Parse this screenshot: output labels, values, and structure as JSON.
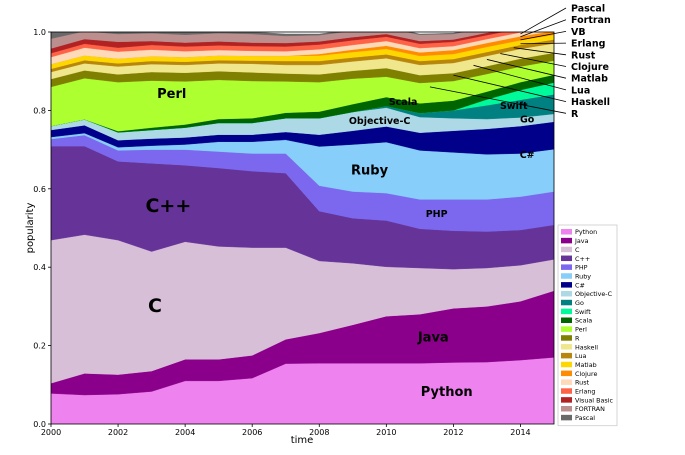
{
  "chart_data": {
    "type": "area",
    "stacked": true,
    "xlabel": "time",
    "ylabel": "popularity",
    "xlim": [
      2000,
      2015
    ],
    "ylim": [
      0,
      1.0
    ],
    "x": [
      2000,
      2001,
      2002,
      2003,
      2004,
      2005,
      2006,
      2007,
      2008,
      2009,
      2010,
      2011,
      2012,
      2013,
      2014,
      2015
    ],
    "x_ticks": [
      "2000",
      "2002",
      "2004",
      "2006",
      "2008",
      "2010",
      "2012",
      "2014"
    ],
    "y_ticks": [
      "0.0",
      "0.2",
      "0.4",
      "0.6",
      "0.8",
      "1.0"
    ],
    "series": [
      {
        "name": "Python",
        "color": "#ee82ee",
        "values": [
          0.078,
          0.074,
          0.076,
          0.083,
          0.11,
          0.11,
          0.117,
          0.154,
          0.155,
          0.155,
          0.155,
          0.155,
          0.157,
          0.158,
          0.163,
          0.17
        ]
      },
      {
        "name": "Java",
        "color": "#8b008b",
        "values": [
          0.026,
          0.055,
          0.05,
          0.052,
          0.055,
          0.055,
          0.058,
          0.062,
          0.077,
          0.098,
          0.12,
          0.125,
          0.138,
          0.142,
          0.15,
          0.17
        ]
      },
      {
        "name": "C",
        "color": "#d8bfd8",
        "values": [
          0.365,
          0.354,
          0.343,
          0.305,
          0.3,
          0.288,
          0.275,
          0.234,
          0.184,
          0.157,
          0.126,
          0.118,
          0.1,
          0.098,
          0.092,
          0.08
        ]
      },
      {
        "name": "C++",
        "color": "#663399",
        "values": [
          0.24,
          0.226,
          0.201,
          0.225,
          0.195,
          0.2,
          0.195,
          0.19,
          0.127,
          0.115,
          0.118,
          0.1,
          0.098,
          0.093,
          0.09,
          0.088
        ]
      },
      {
        "name": "PHP",
        "color": "#7b68ee",
        "values": [
          0.018,
          0.028,
          0.028,
          0.035,
          0.04,
          0.042,
          0.045,
          0.05,
          0.065,
          0.068,
          0.07,
          0.075,
          0.08,
          0.082,
          0.085,
          0.085
        ]
      },
      {
        "name": "Ruby",
        "color": "#87cefa",
        "values": [
          0.005,
          0.005,
          0.008,
          0.01,
          0.013,
          0.025,
          0.03,
          0.035,
          0.1,
          0.12,
          0.13,
          0.125,
          0.12,
          0.115,
          0.11,
          0.108
        ]
      },
      {
        "name": "C#",
        "color": "#00008b",
        "values": [
          0.018,
          0.02,
          0.018,
          0.018,
          0.018,
          0.018,
          0.018,
          0.02,
          0.03,
          0.035,
          0.04,
          0.045,
          0.055,
          0.065,
          0.07,
          0.07
        ]
      },
      {
        "name": "Objective-C",
        "color": "#add8e6",
        "values": [
          0.01,
          0.015,
          0.02,
          0.022,
          0.025,
          0.03,
          0.03,
          0.035,
          0.042,
          0.048,
          0.048,
          0.04,
          0.032,
          0.025,
          0.022,
          0.02
        ]
      },
      {
        "name": "Go",
        "color": "#008080",
        "values": [
          0.0,
          0.0,
          0.0,
          0.0,
          0.0,
          0.0,
          0.0,
          0.0,
          0.0,
          0.0,
          0.004,
          0.01,
          0.02,
          0.035,
          0.045,
          0.05
        ]
      },
      {
        "name": "Swift",
        "color": "#00fa9a",
        "values": [
          0.0,
          0.0,
          0.0,
          0.0,
          0.0,
          0.0,
          0.0,
          0.0,
          0.0,
          0.0,
          0.0,
          0.0,
          0.0,
          0.015,
          0.025,
          0.03
        ]
      },
      {
        "name": "Scala",
        "color": "#006400",
        "values": [
          0.0,
          0.0,
          0.003,
          0.006,
          0.008,
          0.01,
          0.012,
          0.014,
          0.017,
          0.02,
          0.023,
          0.025,
          0.025,
          0.02,
          0.02,
          0.02
        ]
      },
      {
        "name": "Perl",
        "color": "#adff2f",
        "values": [
          0.1,
          0.105,
          0.125,
          0.12,
          0.11,
          0.1,
          0.095,
          0.08,
          0.075,
          0.065,
          0.052,
          0.052,
          0.05,
          0.045,
          0.04,
          0.036
        ]
      },
      {
        "name": "R",
        "color": "#808000",
        "values": [
          0.02,
          0.02,
          0.02,
          0.022,
          0.022,
          0.022,
          0.022,
          0.02,
          0.02,
          0.02,
          0.022,
          0.02,
          0.02,
          0.02,
          0.02,
          0.02
        ]
      },
      {
        "name": "Haskell",
        "color": "#f0e68c",
        "values": [
          0.018,
          0.018,
          0.02,
          0.02,
          0.02,
          0.02,
          0.022,
          0.022,
          0.024,
          0.024,
          0.025,
          0.026,
          0.026,
          0.026,
          0.025,
          0.024
        ]
      },
      {
        "name": "Lua",
        "color": "#b8860b",
        "values": [
          0.008,
          0.008,
          0.008,
          0.008,
          0.008,
          0.008,
          0.008,
          0.01,
          0.01,
          0.01,
          0.01,
          0.01,
          0.01,
          0.01,
          0.01,
          0.01
        ]
      },
      {
        "name": "Matlab",
        "color": "#ffd700",
        "values": [
          0.012,
          0.012,
          0.012,
          0.012,
          0.012,
          0.012,
          0.012,
          0.013,
          0.014,
          0.014,
          0.014,
          0.013,
          0.013,
          0.013,
          0.012,
          0.012
        ]
      },
      {
        "name": "Clojure",
        "color": "#ff8c00",
        "values": [
          0.0,
          0.0,
          0.0,
          0.0,
          0.0,
          0.0,
          0.0,
          0.0,
          0.004,
          0.006,
          0.008,
          0.009,
          0.01,
          0.01,
          0.01,
          0.01
        ]
      },
      {
        "name": "Rust",
        "color": "#ffdab9",
        "values": [
          0.018,
          0.02,
          0.018,
          0.017,
          0.015,
          0.014,
          0.013,
          0.012,
          0.012,
          0.012,
          0.012,
          0.011,
          0.01,
          0.01,
          0.01,
          0.01
        ]
      },
      {
        "name": "Erlang",
        "color": "#ff6347",
        "values": [
          0.01,
          0.01,
          0.01,
          0.012,
          0.012,
          0.012,
          0.012,
          0.012,
          0.012,
          0.012,
          0.011,
          0.011,
          0.011,
          0.01,
          0.01,
          0.01
        ]
      },
      {
        "name": "Visual Basic",
        "color": "#b22222",
        "values": [
          0.012,
          0.012,
          0.015,
          0.01,
          0.01,
          0.01,
          0.009,
          0.009,
          0.008,
          0.008,
          0.007,
          0.007,
          0.006,
          0.006,
          0.005,
          0.005
        ]
      },
      {
        "name": "FORTRAN",
        "color": "#bc8f8f",
        "values": [
          0.025,
          0.02,
          0.02,
          0.02,
          0.02,
          0.021,
          0.022,
          0.018,
          0.016,
          0.016,
          0.016,
          0.016,
          0.014,
          0.014,
          0.013,
          0.013
        ]
      },
      {
        "name": "Pascal",
        "color": "#696969",
        "values": [
          0.017,
          0.008,
          0.008,
          0.013,
          0.007,
          0.005,
          0.005,
          0.005,
          0.003,
          0.003,
          0.002,
          0.002,
          0.002,
          0.002,
          0.002,
          0.002
        ]
      }
    ],
    "annotations": [
      {
        "text": "Python",
        "x": 2011.8,
        "y": 0.08,
        "size": "large"
      },
      {
        "text": "Java",
        "x": 2011.4,
        "y": 0.22,
        "size": "large"
      },
      {
        "text": "C",
        "x": 2003.1,
        "y": 0.3,
        "size": "huge"
      },
      {
        "text": "C++",
        "x": 2003.5,
        "y": 0.555,
        "size": "huge"
      },
      {
        "text": "PHP",
        "x": 2011.5,
        "y": 0.535,
        "size": "medium"
      },
      {
        "text": "Ruby",
        "x": 2009.5,
        "y": 0.645,
        "size": "large"
      },
      {
        "text": "C#",
        "x": 2014.2,
        "y": 0.685,
        "size": "medium"
      },
      {
        "text": "Objective-C",
        "x": 2009.8,
        "y": 0.772,
        "size": "medium"
      },
      {
        "text": "Go",
        "x": 2014.2,
        "y": 0.775,
        "size": "medium"
      },
      {
        "text": "Swift",
        "x": 2013.8,
        "y": 0.81,
        "size": "medium"
      },
      {
        "text": "Scala",
        "x": 2010.5,
        "y": 0.82,
        "size": "medium"
      },
      {
        "text": "Perl",
        "x": 2003.6,
        "y": 0.84,
        "size": "large"
      }
    ],
    "side_labels": [
      "Pascal",
      "Fortran",
      "VB",
      "Erlang",
      "Rust",
      "Clojure",
      "Matlab",
      "Lua",
      "Haskell",
      "R"
    ]
  }
}
